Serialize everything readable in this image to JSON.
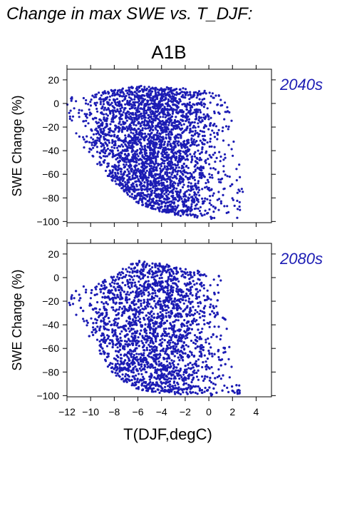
{
  "page_title": "Change in max SWE vs. T_DJF:",
  "scenario_label": "A1B",
  "colors": {
    "points": "#1c1cb4",
    "period_label": "#1c1cb4",
    "axis": "#000000"
  },
  "chart_data": [
    {
      "type": "scatter",
      "period_label": "2040s",
      "xlabel": "",
      "ylabel": "SWE Change (%)",
      "xlim": [
        -12,
        5.3
      ],
      "ylim": [
        -101,
        29
      ],
      "xticks": [
        -12,
        -10,
        -8,
        -6,
        -4,
        -2,
        0,
        2,
        4
      ],
      "yticks": [
        20,
        0,
        -20,
        -40,
        -60,
        -80,
        -100
      ],
      "x_tick_labels_shown": false,
      "grid": false,
      "envelope": {
        "x": [
          -12,
          -11.5,
          -10.5,
          -9.5,
          -8,
          -6,
          -4,
          -2,
          -1,
          0,
          1,
          2,
          3
        ],
        "ymax": [
          10,
          6,
          5,
          9,
          12,
          15,
          14,
          13,
          11,
          11,
          7,
          -10,
          -78
        ],
        "ymin": [
          -10,
          -20,
          -40,
          -52,
          -67,
          -85,
          -92,
          -96,
          -97,
          -98,
          -98,
          -98,
          -97
        ]
      },
      "point_count": 3000
    },
    {
      "type": "scatter",
      "period_label": "2080s",
      "xlabel": "T(DJF,degC)",
      "ylabel": "SWE Change (%)",
      "xlim": [
        -12,
        5.3
      ],
      "ylim": [
        -101,
        29
      ],
      "xticks": [
        -12,
        -10,
        -8,
        -6,
        -4,
        -2,
        0,
        2,
        4
      ],
      "yticks": [
        20,
        0,
        -20,
        -40,
        -60,
        -80,
        -100
      ],
      "x_tick_labels_shown": true,
      "grid": false,
      "envelope": {
        "x": [
          -12,
          -11,
          -10,
          -9,
          -8,
          -7,
          -6,
          -4,
          -2,
          -1,
          0,
          1,
          2,
          3
        ],
        "ymax": [
          -20,
          -5,
          -10,
          -3,
          2,
          10,
          15,
          12,
          8,
          6,
          3,
          2,
          -80,
          -99
        ],
        "ymin": [
          -20,
          -35,
          -55,
          -70,
          -82,
          -90,
          -95,
          -98,
          -99,
          -100,
          -100,
          -100,
          -100,
          -100
        ]
      },
      "point_count": 3000
    }
  ]
}
